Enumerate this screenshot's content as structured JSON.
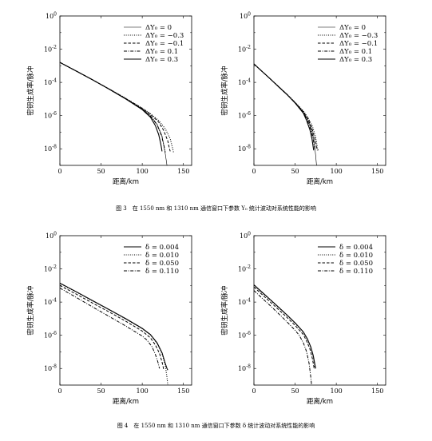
{
  "captions": {
    "fig3": "图 3　在 1550 nm 和 1310 nm 通信窗口下参数 Y₀ 统计波动对系统性能的影响",
    "fig4": "图 4　在 1550 nm 和 1310 nm 通信窗口下参数 δ 统计波动对系统性能的影响"
  },
  "chart_data": [
    {
      "type": "line",
      "window": "1550 nm",
      "xlabel": "距离/km",
      "ylabel": "密钥生成率/脉冲",
      "xlim": [
        0,
        160
      ],
      "ylim": [
        1e-09,
        1
      ],
      "y_scale": "log",
      "xticks": [
        "0",
        "50",
        "100",
        "150"
      ],
      "yticks": [
        "10^0",
        "10^-2",
        "10^-4",
        "10^-6",
        "10^-8"
      ],
      "legend_position": "top-right",
      "series": [
        {
          "name": "ΔY₀ = 0",
          "style": "solid-thin",
          "x": [
            0,
            20,
            40,
            60,
            80,
            100,
            110,
            118,
            124,
            128,
            130,
            130.5
          ],
          "y": [
            0.0016,
            0.00048,
            0.00014,
            3.9e-05,
            1.05e-05,
            2.5e-06,
            1e-06,
            3e-07,
            6e-08,
            5e-09,
            1e-09,
            1e-09
          ]
        },
        {
          "name": "ΔY₀ = −0.3",
          "style": "dotted",
          "x": [
            0,
            20,
            40,
            60,
            80,
            100,
            110,
            120,
            128,
            134,
            137,
            138
          ],
          "y": [
            0.0016,
            0.00048,
            0.00014,
            4e-05,
            1.1e-05,
            2.8e-06,
            1.3e-06,
            5e-07,
            1.6e-07,
            4e-08,
            1e-08,
            6e-09
          ]
        },
        {
          "name": "ΔY₀ = −0.1",
          "style": "dashed",
          "x": [
            0,
            20,
            40,
            60,
            80,
            100,
            110,
            120,
            126,
            131,
            133,
            134
          ],
          "y": [
            0.0016,
            0.00048,
            0.00014,
            3.95e-05,
            1.07e-05,
            2.7e-06,
            1.2e-06,
            4e-07,
            1.3e-07,
            3e-08,
            1e-08,
            7e-09
          ]
        },
        {
          "name": "ΔY₀ = 0.1",
          "style": "dashdot",
          "x": [
            0,
            20,
            40,
            60,
            80,
            100,
            110,
            118,
            123,
            126,
            127.5,
            128
          ],
          "y": [
            0.0016,
            0.00048,
            0.00014,
            3.85e-05,
            1.02e-05,
            2.4e-06,
            9e-07,
            2.8e-07,
            7e-08,
            2e-08,
            8e-09,
            6e-09
          ]
        },
        {
          "name": "ΔY₀ = 0.3",
          "style": "solid",
          "x": [
            0,
            20,
            40,
            60,
            80,
            100,
            110,
            116,
            120,
            122.5,
            123.5,
            124
          ],
          "y": [
            0.0016,
            0.00048,
            0.00014,
            3.8e-05,
            1e-05,
            2.3e-06,
            8e-07,
            2.5e-07,
            7e-08,
            2e-08,
            1e-08,
            7e-09
          ]
        }
      ]
    },
    {
      "type": "line",
      "window": "1310 nm",
      "xlabel": "距离/km",
      "ylabel": "密钥生成率/脉冲",
      "xlim": [
        0,
        160
      ],
      "ylim": [
        1e-09,
        1
      ],
      "y_scale": "log",
      "xticks": [
        "0",
        "50",
        "100",
        "150"
      ],
      "yticks": [
        "10^0",
        "10^-2",
        "10^-4",
        "10^-6",
        "10^-8"
      ],
      "legend_position": "top-right",
      "series": [
        {
          "name": "ΔY₀ = 0",
          "style": "solid-thin",
          "x": [
            0,
            10,
            20,
            30,
            40,
            50,
            60,
            66,
            70,
            73,
            75,
            76
          ],
          "y": [
            0.0013,
            0.00045,
            0.00016,
            5.5e-05,
            1.9e-05,
            6e-06,
            1.6e-06,
            5e-07,
            1.5e-07,
            3e-08,
            4e-09,
            1e-09
          ]
        },
        {
          "name": "ΔY₀ = −0.3",
          "style": "dotted",
          "x": [
            0,
            10,
            20,
            30,
            40,
            50,
            60,
            66,
            71,
            75,
            77,
            78
          ],
          "y": [
            0.0013,
            0.00045,
            0.00016,
            5.6e-05,
            1.95e-05,
            6.3e-06,
            1.9e-06,
            7e-07,
            2.3e-07,
            5e-08,
            1.2e-08,
            8e-09
          ]
        },
        {
          "name": "ΔY₀ = −0.1",
          "style": "dashed",
          "x": [
            0,
            10,
            20,
            30,
            40,
            50,
            60,
            66,
            70,
            74,
            76,
            77
          ],
          "y": [
            0.0013,
            0.00045,
            0.00016,
            5.55e-05,
            1.92e-05,
            6.1e-06,
            1.7e-06,
            6e-07,
            2e-07,
            4e-08,
            1.2e-08,
            8e-09
          ]
        },
        {
          "name": "ΔY₀ = 0.1",
          "style": "dashdot",
          "x": [
            0,
            10,
            20,
            30,
            40,
            50,
            60,
            65,
            69,
            72,
            73.5,
            74
          ],
          "y": [
            0.0013,
            0.00045,
            0.00016,
            5.45e-05,
            1.88e-05,
            5.9e-06,
            1.5e-06,
            5e-07,
            1.5e-07,
            3.5e-08,
            1.2e-08,
            8e-09
          ]
        },
        {
          "name": "ΔY₀ = 0.3",
          "style": "solid",
          "x": [
            0,
            10,
            20,
            30,
            40,
            50,
            60,
            64,
            68,
            70.5,
            72,
            72.5
          ],
          "y": [
            0.0013,
            0.00045,
            0.00016,
            5.4e-05,
            1.85e-05,
            5.7e-06,
            1.4e-06,
            5e-07,
            1.4e-07,
            4e-08,
            1.2e-08,
            8e-09
          ]
        }
      ]
    },
    {
      "type": "line",
      "window": "1550 nm",
      "xlabel": "距离/km",
      "ylabel": "密钥生成率/脉冲",
      "xlim": [
        0,
        160
      ],
      "ylim": [
        1e-09,
        1
      ],
      "y_scale": "log",
      "xticks": [
        "0",
        "50",
        "100",
        "150"
      ],
      "yticks": [
        "10^0",
        "10^-2",
        "10^-4",
        "10^-6",
        "10^-8"
      ],
      "legend_position": "top-right",
      "series": [
        {
          "name": "δ = 0.004",
          "style": "solid",
          "x": [
            0,
            20,
            40,
            60,
            80,
            100,
            110,
            118,
            124,
            128,
            130,
            131
          ],
          "y": [
            0.0014,
            0.00042,
            0.00012,
            3.5e-05,
            1e-05,
            2.6e-06,
            1.1e-06,
            3.5e-07,
            9e-08,
            2e-08,
            1e-08,
            8e-09
          ]
        },
        {
          "name": "δ = 0.010",
          "style": "dotted",
          "x": [
            0,
            20,
            40,
            60,
            80,
            100,
            110,
            118,
            124,
            128,
            130,
            131
          ],
          "y": [
            0.0013,
            0.0004,
            0.000115,
            3.4e-05,
            9.6e-06,
            2.5e-06,
            1.05e-06,
            3.3e-07,
            8e-08,
            1.5e-08,
            3e-09,
            1e-09
          ]
        },
        {
          "name": "δ = 0.050",
          "style": "dashed",
          "x": [
            0,
            20,
            40,
            60,
            80,
            100,
            110,
            116,
            121,
            124,
            125.5,
            126
          ],
          "y": [
            0.001,
            0.0003,
            8.5e-05,
            2.5e-05,
            7e-06,
            1.8e-06,
            7e-07,
            2.6e-07,
            8e-08,
            2.5e-08,
            1.2e-08,
            9e-09
          ]
        },
        {
          "name": "δ = 0.110",
          "style": "dashdot",
          "x": [
            0,
            20,
            40,
            60,
            80,
            100,
            106,
            112,
            116,
            119,
            120.5,
            121
          ],
          "y": [
            0.0007,
            0.00019,
            5e-05,
            1.35e-05,
            3.6e-06,
            9e-07,
            5e-07,
            2e-07,
            7e-08,
            2.5e-08,
            1.2e-08,
            1e-08
          ]
        }
      ]
    },
    {
      "type": "line",
      "window": "1310 nm",
      "xlabel": "距离/km",
      "ylabel": "密钥生成率/脉冲",
      "xlim": [
        0,
        160
      ],
      "ylim": [
        1e-09,
        1
      ],
      "y_scale": "log",
      "xticks": [
        "0",
        "50",
        "100",
        "150"
      ],
      "yticks": [
        "10^0",
        "10^-2",
        "10^-4",
        "10^-6",
        "10^-8"
      ],
      "legend_position": "top-right",
      "series": [
        {
          "name": "δ = 0.004",
          "style": "solid",
          "x": [
            0,
            10,
            20,
            30,
            40,
            50,
            60,
            65,
            69,
            72,
            74,
            75
          ],
          "y": [
            0.0011,
            0.00039,
            0.00014,
            4.9e-05,
            1.7e-05,
            5.6e-06,
            1.6e-06,
            6e-07,
            2e-07,
            6e-08,
            1.8e-08,
            1e-08
          ]
        },
        {
          "name": "δ = 0.010",
          "style": "dotted",
          "x": [
            0,
            10,
            20,
            30,
            40,
            50,
            60,
            65,
            69,
            72,
            73.5,
            74
          ],
          "y": [
            0.001,
            0.00036,
            0.00013,
            4.6e-05,
            1.6e-05,
            5.2e-06,
            1.5e-06,
            5.5e-07,
            1.8e-07,
            5e-08,
            1.8e-08,
            1e-08
          ]
        },
        {
          "name": "δ = 0.050",
          "style": "dashed",
          "x": [
            0,
            10,
            20,
            30,
            40,
            50,
            60,
            64,
            68,
            71,
            72.5,
            73
          ],
          "y": [
            0.0008,
            0.00028,
            0.0001,
            3.5e-05,
            1.2e-05,
            3.9e-06,
            1.1e-06,
            4.5e-07,
            1.5e-07,
            4e-08,
            1.5e-08,
            1e-08
          ]
        },
        {
          "name": "δ = 0.110",
          "style": "dashdot",
          "x": [
            0,
            10,
            20,
            30,
            40,
            50,
            55,
            60,
            64,
            67,
            69,
            70
          ],
          "y": [
            0.0005,
            0.00017,
            6e-05,
            2e-05,
            6.5e-06,
            2e-06,
            1e-06,
            3.5e-07,
            1e-07,
            2e-08,
            3e-09,
            1e-09
          ]
        }
      ]
    }
  ]
}
